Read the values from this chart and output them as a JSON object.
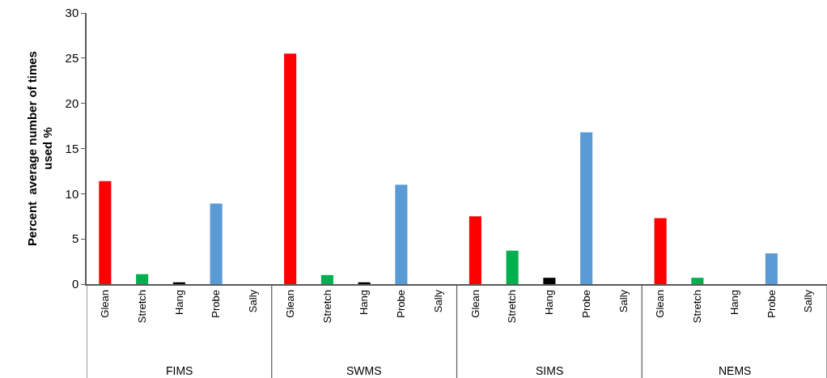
{
  "chart_data": {
    "type": "bar",
    "ylabel": "Percent  average number of times\nused %",
    "categories": [
      "Glean",
      "Stretch",
      "Hang",
      "Probe",
      "Sally",
      "Glean",
      "Stretch",
      "Hang",
      "Probe",
      "Sally",
      "Glean",
      "Stretch",
      "Hang",
      "Probe",
      "Sally",
      "Glean",
      "Stretch",
      "Hang",
      "Probe",
      "Sally"
    ],
    "values": [
      11.4,
      1.1,
      0.2,
      8.9,
      0,
      25.5,
      1.0,
      0.2,
      11.0,
      0,
      7.5,
      3.7,
      0.7,
      16.8,
      0,
      7.3,
      0.7,
      0,
      3.4,
      0
    ],
    "colors": [
      "#ff0000",
      "#00b050",
      "#000000",
      "#5b9bd5",
      "#7f7f7f",
      "#ff0000",
      "#00b050",
      "#000000",
      "#5b9bd5",
      "#7f7f7f",
      "#ff0000",
      "#00b050",
      "#000000",
      "#5b9bd5",
      "#7f7f7f",
      "#ff0000",
      "#00b050",
      "#000000",
      "#5b9bd5",
      "#7f7f7f"
    ],
    "annotations": [
      "FIMS",
      "SWMS",
      "SIMS",
      "NEMS"
    ],
    "ylim": [
      0,
      30
    ],
    "yticks": [
      0,
      5,
      10,
      15,
      20,
      25,
      30
    ]
  }
}
